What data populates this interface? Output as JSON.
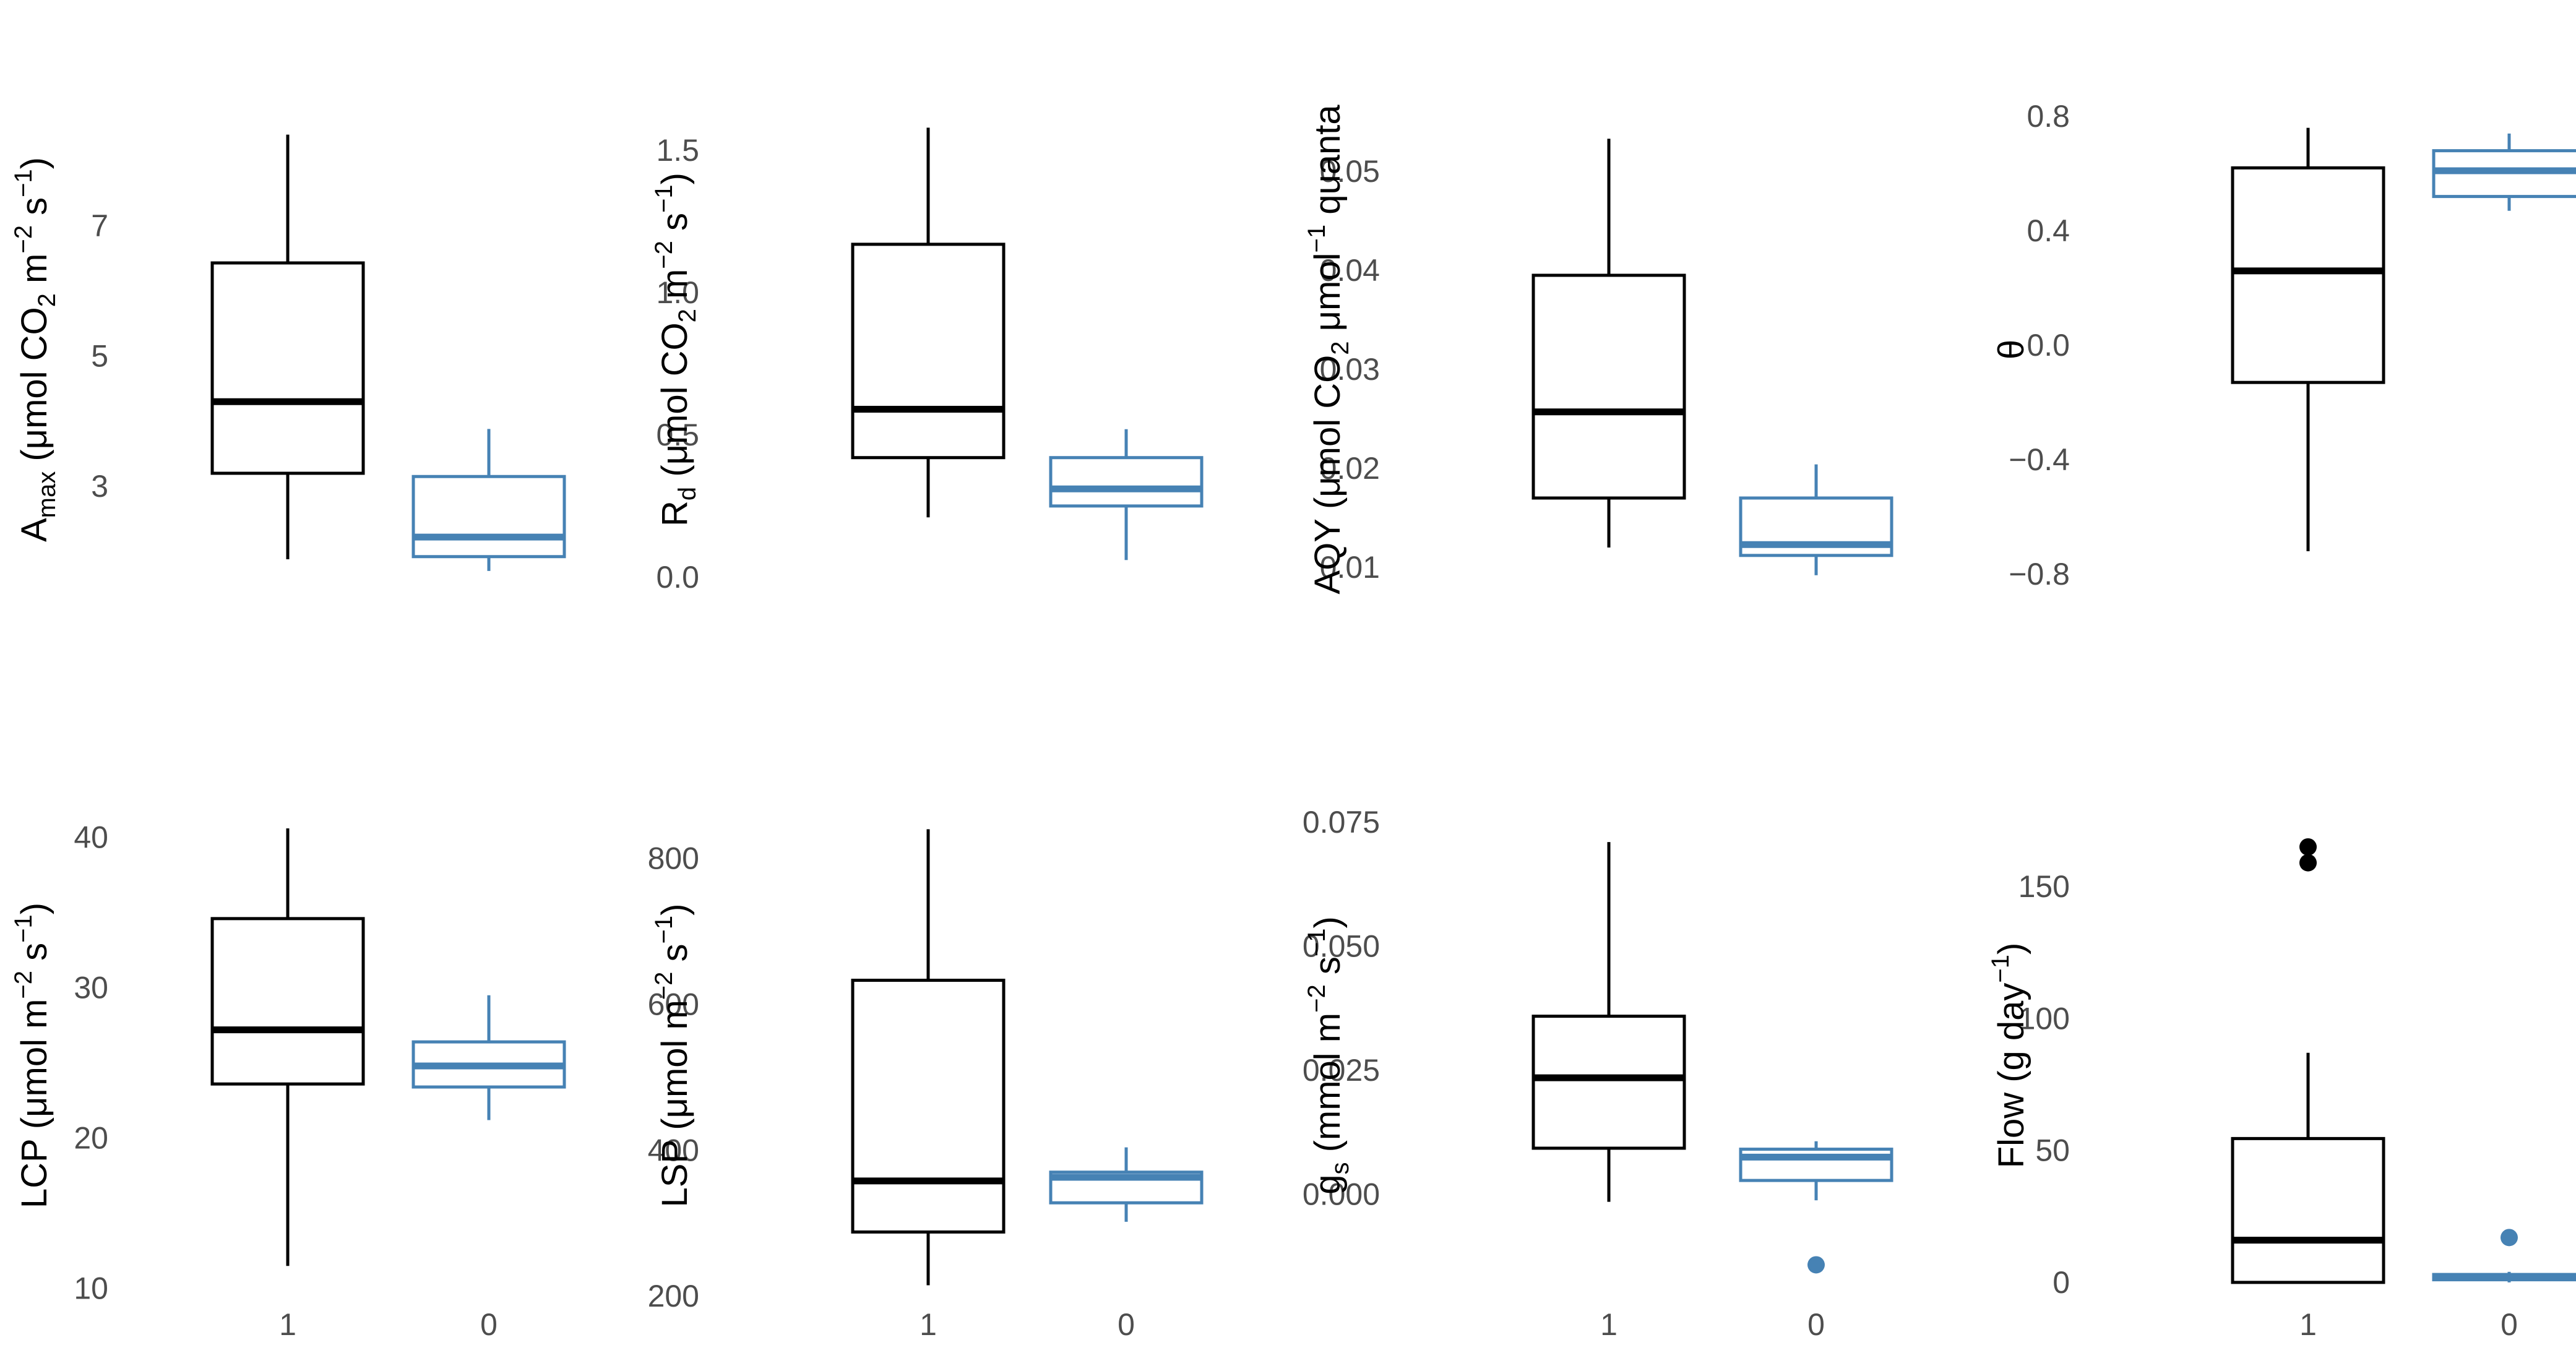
{
  "colors": {
    "group_1": "#000000",
    "group_0": "#4682b4",
    "tick_text": "#4d4d4d"
  },
  "chart_data": [
    {
      "type": "boxplot",
      "panel": "Amax",
      "ylabel": "Amax (μmol CO2 m−2 s−1)",
      "ylabel_parts": [
        [
          "A",
          ""
        ],
        [
          "max",
          "sub"
        ],
        [
          " (μmol CO",
          ""
        ],
        [
          "2",
          "sub"
        ],
        [
          " m",
          ""
        ],
        [
          "−2",
          "sup"
        ],
        [
          " s",
          ""
        ],
        [
          "−1",
          "sup"
        ],
        [
          ")",
          ""
        ]
      ],
      "ylim": [
        1.3,
        8.9
      ],
      "yticks": [
        3,
        5,
        7
      ],
      "ytick_labels": [
        "3",
        "5",
        "7"
      ],
      "categories": [
        "1",
        "0"
      ],
      "boxes": [
        {
          "group": "1",
          "whisker_low": 1.88,
          "q1": 3.2,
          "median": 4.3,
          "q3": 6.43,
          "whisker_high": 8.4,
          "outliers": []
        },
        {
          "group": "0",
          "whisker_low": 1.7,
          "q1": 1.92,
          "median": 2.22,
          "q3": 3.15,
          "whisker_high": 3.88,
          "outliers": []
        }
      ]
    },
    {
      "type": "boxplot",
      "panel": "Rd",
      "ylabel": "Rd (μmol CO2 m−2 s−1)",
      "ylabel_parts": [
        [
          "R",
          ""
        ],
        [
          "d",
          "sub"
        ],
        [
          " (μmol CO",
          ""
        ],
        [
          "2",
          "sub"
        ],
        [
          " m",
          ""
        ],
        [
          "−2",
          "sup"
        ],
        [
          " s",
          ""
        ],
        [
          "−1",
          "sup"
        ],
        [
          ")",
          ""
        ]
      ],
      "ylim": [
        -0.07,
        1.67
      ],
      "yticks": [
        0.0,
        0.5,
        1.0,
        1.5
      ],
      "ytick_labels": [
        "0.0",
        "0.5",
        "1.0",
        "1.5"
      ],
      "categories": [
        "1",
        "0"
      ],
      "boxes": [
        {
          "group": "1",
          "whisker_low": 0.21,
          "q1": 0.42,
          "median": 0.59,
          "q3": 1.17,
          "whisker_high": 1.58,
          "outliers": []
        },
        {
          "group": "0",
          "whisker_low": 0.06,
          "q1": 0.25,
          "median": 0.31,
          "q3": 0.42,
          "whisker_high": 0.52,
          "outliers": []
        }
      ]
    },
    {
      "type": "boxplot",
      "panel": "AQY",
      "ylabel": "AQY (μmol CO2 μmol−1 quanta)",
      "ylabel_parts": [
        [
          "AQY (μmol CO",
          ""
        ],
        [
          "2",
          "sub"
        ],
        [
          " μmol",
          ""
        ],
        [
          "−1",
          "sup"
        ],
        [
          " quanta",
          ""
        ]
      ],
      "ylim": [
        0.007,
        0.057
      ],
      "yticks": [
        0.01,
        0.02,
        0.03,
        0.04,
        0.05
      ],
      "ytick_labels": [
        "0.01",
        "0.02",
        "0.03",
        "0.04",
        "0.05"
      ],
      "categories": [
        "1",
        "0"
      ],
      "boxes": [
        {
          "group": "1",
          "whisker_low": 0.012,
          "q1": 0.017,
          "median": 0.0257,
          "q3": 0.0395,
          "whisker_high": 0.0533,
          "outliers": []
        },
        {
          "group": "0",
          "whisker_low": 0.0092,
          "q1": 0.0112,
          "median": 0.0123,
          "q3": 0.017,
          "whisker_high": 0.0204,
          "outliers": []
        }
      ]
    },
    {
      "type": "boxplot",
      "panel": "theta",
      "ylabel": "θ",
      "ylabel_parts": [
        [
          "θ",
          ""
        ]
      ],
      "ylim": [
        -0.88,
        0.85
      ],
      "yticks": [
        -0.8,
        -0.4,
        0.0,
        0.4,
        0.8
      ],
      "ytick_labels": [
        "−0.8",
        "−0.4",
        "0.0",
        "0.4",
        "0.8"
      ],
      "categories": [
        "1",
        "0"
      ],
      "boxes": [
        {
          "group": "1",
          "whisker_low": -0.72,
          "q1": -0.13,
          "median": 0.26,
          "q3": 0.62,
          "whisker_high": 0.76,
          "outliers": []
        },
        {
          "group": "0",
          "whisker_low": 0.47,
          "q1": 0.52,
          "median": 0.61,
          "q3": 0.68,
          "whisker_high": 0.74,
          "outliers": []
        }
      ]
    },
    {
      "type": "boxplot",
      "panel": "LCP",
      "ylabel": "LCP (μmol m−2 s−1)",
      "ylabel_parts": [
        [
          "LCP (μmol m",
          ""
        ],
        [
          "−2",
          "sup"
        ],
        [
          " s",
          ""
        ],
        [
          "−1",
          "sup"
        ],
        [
          ")",
          ""
        ]
      ],
      "ylim": [
        9,
        42
      ],
      "yticks": [
        10,
        20,
        30,
        40
      ],
      "ytick_labels": [
        "10",
        "20",
        "30",
        "40"
      ],
      "categories": [
        "1",
        "0"
      ],
      "boxes": [
        {
          "group": "1",
          "whisker_low": 11.5,
          "q1": 23.6,
          "median": 27.2,
          "q3": 34.6,
          "whisker_high": 40.6,
          "outliers": []
        },
        {
          "group": "0",
          "whisker_low": 21.2,
          "q1": 23.4,
          "median": 24.8,
          "q3": 26.4,
          "whisker_high": 29.5,
          "outliers": []
        }
      ]
    },
    {
      "type": "boxplot",
      "panel": "LSP",
      "ylabel": "LSP (μmol m−2 s−1)",
      "ylabel_parts": [
        [
          "LSP (μmol m",
          ""
        ],
        [
          "−2",
          "sup"
        ],
        [
          " s",
          ""
        ],
        [
          "−1",
          "sup"
        ],
        [
          ")",
          ""
        ]
      ],
      "ylim": [
        190,
        870
      ],
      "yticks": [
        200,
        400,
        600,
        800
      ],
      "ytick_labels": [
        "200",
        "400",
        "600",
        "800"
      ],
      "categories": [
        "1",
        "0"
      ],
      "boxes": [
        {
          "group": "1",
          "whisker_low": 215,
          "q1": 288,
          "median": 358,
          "q3": 633,
          "whisker_high": 840,
          "outliers": []
        },
        {
          "group": "0",
          "whisker_low": 302,
          "q1": 328,
          "median": 363,
          "q3": 370,
          "whisker_high": 404,
          "outliers": []
        }
      ]
    },
    {
      "type": "boxplot",
      "panel": "gs",
      "ylabel": "gs (mmol m−2 s−1)",
      "ylabel_parts": [
        [
          "g",
          ""
        ],
        [
          "s",
          "sub"
        ],
        [
          " (mmol m",
          ""
        ],
        [
          "−2",
          "sup"
        ],
        [
          " s",
          ""
        ],
        [
          "−1",
          "sup"
        ],
        [
          ")",
          ""
        ]
      ],
      "ylim": [
        -0.022,
        0.078
      ],
      "yticks": [
        0.0,
        0.025,
        0.05,
        0.075
      ],
      "ytick_labels": [
        "0.000",
        "0.025",
        "0.050",
        "0.075"
      ],
      "categories": [
        "1",
        "0"
      ],
      "boxes": [
        {
          "group": "1",
          "whisker_low": -0.0015,
          "q1": 0.0093,
          "median": 0.0235,
          "q3": 0.0359,
          "whisker_high": 0.071,
          "outliers": []
        },
        {
          "group": "0",
          "whisker_low": -0.0012,
          "q1": 0.0028,
          "median": 0.0075,
          "q3": 0.0091,
          "whisker_high": 0.0107,
          "outliers": [
            -0.0142
          ]
        }
      ]
    },
    {
      "type": "boxplot",
      "panel": "Flow",
      "ylabel": "Flow (g day−1)",
      "ylabel_parts": [
        [
          "Flow (g day",
          ""
        ],
        [
          "−1",
          "sup"
        ],
        [
          ")",
          ""
        ]
      ],
      "ylim": [
        -8,
        180
      ],
      "yticks": [
        0,
        50,
        100,
        150
      ],
      "ytick_labels": [
        "0",
        "50",
        "100",
        "150"
      ],
      "categories": [
        "1",
        "0"
      ],
      "boxes": [
        {
          "group": "1",
          "whisker_low": 0,
          "q1": 0,
          "median": 16,
          "q3": 54.5,
          "whisker_high": 87,
          "outliers": [
            159,
            165
          ]
        },
        {
          "group": "0",
          "whisker_low": 0,
          "q1": 1,
          "median": 2,
          "q3": 3,
          "whisker_high": 4,
          "outliers": [
            17
          ]
        }
      ]
    }
  ]
}
